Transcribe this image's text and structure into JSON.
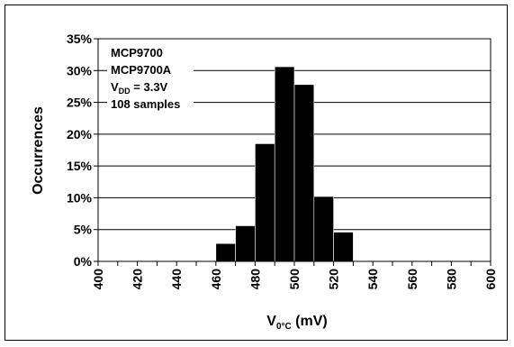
{
  "chart_data": {
    "type": "bar",
    "subtype": "histogram",
    "xlabel": {
      "main": "V",
      "sub": "0°C",
      "rest": " (mV)"
    },
    "ylabel": "Occurrences",
    "x_ticks": [
      "400",
      "420",
      "440",
      "460",
      "480",
      "500",
      "520",
      "540",
      "560",
      "580",
      "600"
    ],
    "y_ticks": [
      "0%",
      "5%",
      "10%",
      "15%",
      "20%",
      "25%",
      "30%",
      "35%"
    ],
    "xlim": [
      400,
      600
    ],
    "ylim": [
      0,
      35
    ],
    "bin_width": 10,
    "grid": "horizontal",
    "bars": [
      {
        "x_start": 460,
        "value": 2.8
      },
      {
        "x_start": 470,
        "value": 5.6
      },
      {
        "x_start": 480,
        "value": 18.5
      },
      {
        "x_start": 490,
        "value": 30.6
      },
      {
        "x_start": 500,
        "value": 27.8
      },
      {
        "x_start": 510,
        "value": 10.2
      },
      {
        "x_start": 520,
        "value": 4.6
      }
    ],
    "annotation": {
      "line1": "MCP9700",
      "line2": "MCP9700A",
      "line3_main": "V",
      "line3_sub": "DD",
      "line3_rest": " = 3.3V",
      "line4": "108 samples"
    },
    "bar_color": "#000000"
  }
}
